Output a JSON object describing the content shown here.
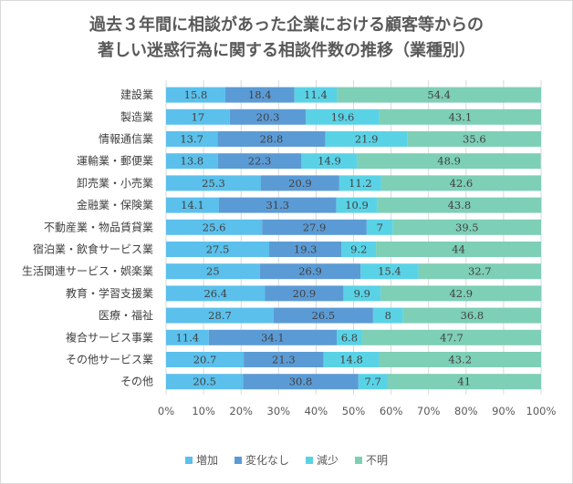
{
  "title": {
    "line1": "過去３年間に相談があった企業における顧客等からの",
    "line2": "著しい迷惑行為に関する相談件数の推移（業種別）"
  },
  "chart_data": {
    "type": "bar",
    "orientation": "horizontal",
    "stacked": "percent",
    "categories": [
      "建設業",
      "製造業",
      "情報通信業",
      "運輸業・郵便業",
      "卸売業・小売業",
      "金融業・保険業",
      "不動産業・物品賃貸業",
      "宿泊業・飲食サービス業",
      "生活関連サービス・娯楽業",
      "教育・学習支援業",
      "医療・福祉",
      "複合サービス事業",
      "その他サービス業",
      "その他"
    ],
    "series": [
      {
        "name": "増加",
        "color": "#5bc0eb",
        "values": [
          15.8,
          17,
          13.7,
          13.8,
          25.3,
          14.1,
          25.6,
          27.5,
          25,
          26.4,
          28.7,
          11.4,
          20.7,
          20.5
        ]
      },
      {
        "name": "変化なし",
        "color": "#5b9bd5",
        "values": [
          18.4,
          20.3,
          28.8,
          22.3,
          20.9,
          31.3,
          27.9,
          19.3,
          26.9,
          20.9,
          26.5,
          34.1,
          21.3,
          30.8
        ]
      },
      {
        "name": "減少",
        "color": "#5ad2e6",
        "values": [
          11.4,
          19.6,
          21.9,
          14.9,
          11.2,
          10.9,
          7,
          9.2,
          15.4,
          9.9,
          8,
          6.8,
          14.8,
          7.7
        ]
      },
      {
        "name": "不明",
        "color": "#7dcfb6",
        "values": [
          54.4,
          43.1,
          35.6,
          48.9,
          42.6,
          43.8,
          39.5,
          44,
          32.7,
          42.9,
          36.8,
          47.7,
          43.2,
          41
        ]
      }
    ],
    "xlim": [
      0,
      100
    ],
    "xticks": [
      "0%",
      "10%",
      "20%",
      "30%",
      "40%",
      "50%",
      "60%",
      "70%",
      "80%",
      "90%",
      "100%"
    ],
    "grid": true,
    "legend_position": "bottom"
  }
}
